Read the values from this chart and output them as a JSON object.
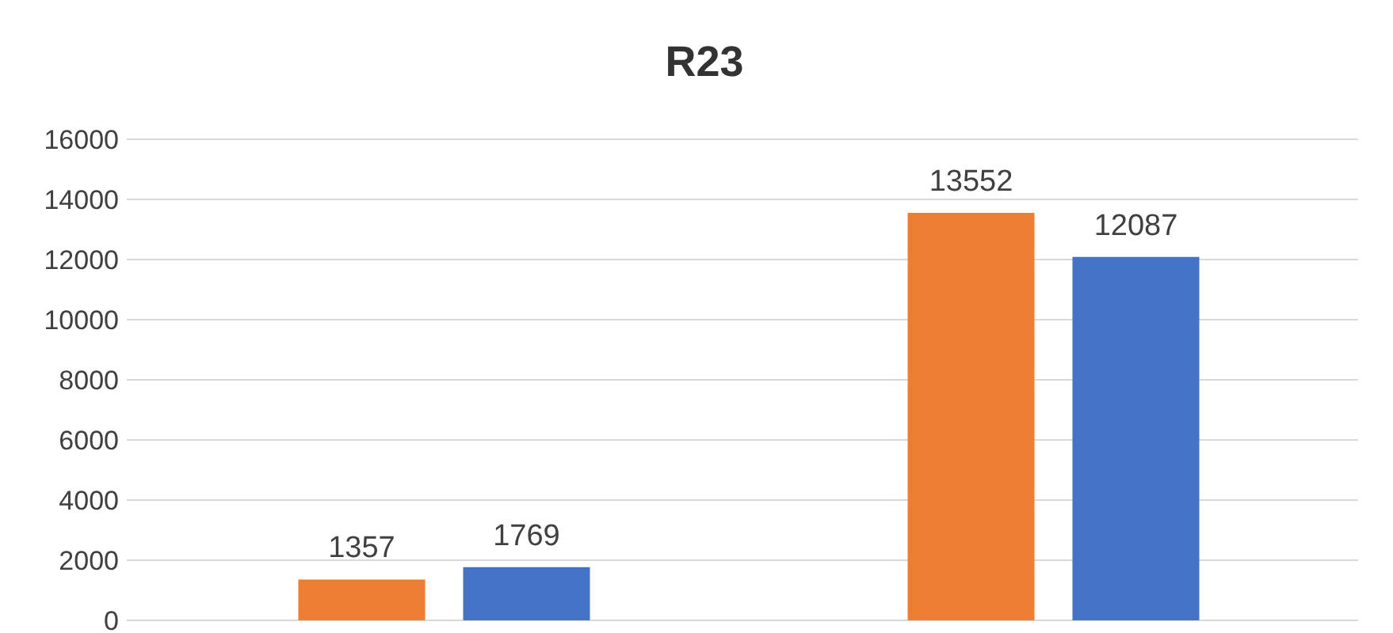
{
  "chart_data": {
    "type": "bar",
    "title": "R23",
    "categories": [
      null,
      null
    ],
    "series": [
      {
        "color": "#ed7d31",
        "values": [
          1357,
          13552
        ]
      },
      {
        "color": "#4472c4",
        "values": [
          1769,
          12087
        ]
      }
    ],
    "ylim": [
      0,
      16000
    ],
    "yticks": [
      0,
      2000,
      4000,
      6000,
      8000,
      10000,
      12000,
      14000,
      16000
    ],
    "grid": "y",
    "data_labels": true
  }
}
